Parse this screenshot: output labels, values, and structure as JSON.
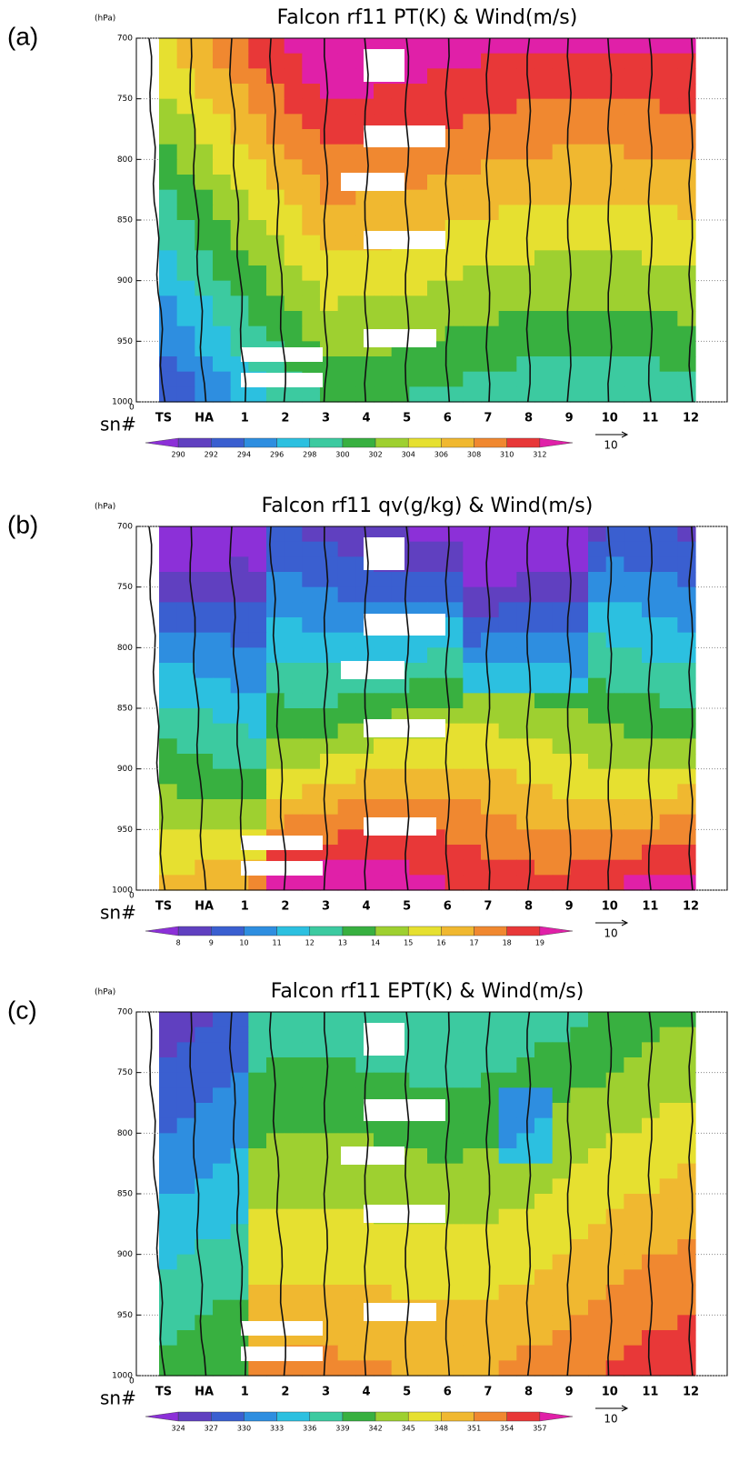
{
  "chart_data": [
    {
      "type": "contour",
      "panel_label": "(a)",
      "title": "Falcon rf11 PT(K) & Wind(m/s)",
      "y_label": "(hPa)",
      "x_label": "sn#",
      "x_origin_label": "0",
      "categories": [
        "TS",
        "HA",
        "1",
        "2",
        "3",
        "4",
        "5",
        "6",
        "7",
        "8",
        "9",
        "10",
        "11",
        "12"
      ],
      "ylim": [
        700,
        1000
      ],
      "yticks": [
        700,
        750,
        800,
        850,
        900,
        950,
        1000
      ],
      "colorbar": {
        "levels": [
          290,
          292,
          294,
          296,
          298,
          300,
          302,
          304,
          306,
          308,
          310,
          312
        ],
        "colors": [
          "#8c30d8",
          "#6040c0",
          "#3a5fd0",
          "#2e8ee0",
          "#2cc0e0",
          "#3ccaa0",
          "#38b040",
          "#9ed030",
          "#e6e030",
          "#f0b830",
          "#f08830",
          "#e83838",
          "#e020a8"
        ]
      },
      "vector_ref": 10
    },
    {
      "type": "contour",
      "panel_label": "(b)",
      "title": "Falcon rf11 qv(g/kg) & Wind(m/s)",
      "y_label": "(hPa)",
      "x_label": "sn#",
      "x_origin_label": "0",
      "categories": [
        "TS",
        "HA",
        "1",
        "2",
        "3",
        "4",
        "5",
        "6",
        "7",
        "8",
        "9",
        "10",
        "11",
        "12"
      ],
      "ylim": [
        700,
        1000
      ],
      "yticks": [
        700,
        750,
        800,
        850,
        900,
        950,
        1000
      ],
      "colorbar": {
        "levels": [
          8,
          9,
          10,
          11,
          12,
          13,
          14,
          15,
          16,
          17,
          18,
          19
        ],
        "colors": [
          "#8c30d8",
          "#6040c0",
          "#3a5fd0",
          "#2e8ee0",
          "#2cc0e0",
          "#3ccaa0",
          "#38b040",
          "#9ed030",
          "#e6e030",
          "#f0b830",
          "#f08830",
          "#e83838",
          "#e020a8"
        ]
      },
      "vector_ref": 10
    },
    {
      "type": "contour",
      "panel_label": "(c)",
      "title": "Falcon rf11 EPT(K) & Wind(m/s)",
      "y_label": "(hPa)",
      "x_label": "sn#",
      "x_origin_label": "0",
      "categories": [
        "TS",
        "HA",
        "1",
        "2",
        "3",
        "4",
        "5",
        "6",
        "7",
        "8",
        "9",
        "10",
        "11",
        "12"
      ],
      "ylim": [
        700,
        1000
      ],
      "yticks": [
        700,
        750,
        800,
        850,
        900,
        950,
        1000
      ],
      "colorbar": {
        "levels": [
          324,
          327,
          330,
          333,
          336,
          339,
          342,
          345,
          348,
          351,
          354,
          357
        ],
        "colors": [
          "#8c30d8",
          "#6040c0",
          "#3a5fd0",
          "#2e8ee0",
          "#2cc0e0",
          "#3ccaa0",
          "#38b040",
          "#9ed030",
          "#e6e030",
          "#f0b830",
          "#f08830",
          "#e83838",
          "#e020a8"
        ]
      },
      "vector_ref": 10
    }
  ]
}
